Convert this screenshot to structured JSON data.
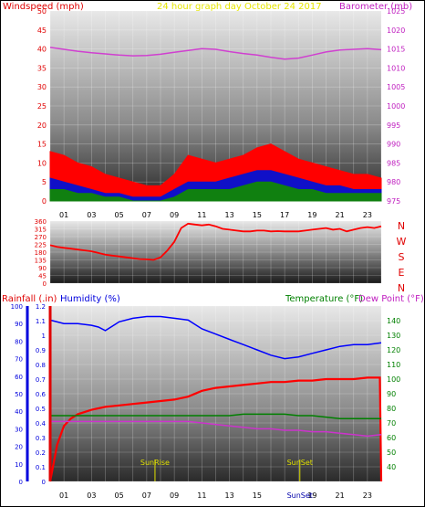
{
  "header": {
    "wind_title": "Windspeed (mph)",
    "center_title": "24 hour graph day   October 24 2017",
    "baro_title": "Barometer (mb)"
  },
  "colors": {
    "wind_title": "#e00000",
    "center_title": "#e6e600",
    "baro_title": "#c020c0",
    "wind_high": "#ff0000",
    "wind_mid": "#1010c8",
    "wind_low": "#108010",
    "barometer": "#d040d0",
    "direction": "#ff0000",
    "rain": "#ff0000",
    "humidity": "#0000ff",
    "temperature": "#008000",
    "dewpoint": "#cc33cc",
    "rain_axis": "#e00000",
    "hum_axis": "#0000dd",
    "temp_axis": "#008000",
    "sun": "#e0e000",
    "frame": "#000000"
  },
  "x_ticks": [
    "01",
    "03",
    "05",
    "07",
    "09",
    "11",
    "13",
    "15",
    "17",
    "19",
    "21",
    "23"
  ],
  "direction_letters": [
    "N",
    "W",
    "S",
    "E",
    "N"
  ],
  "panel3_titles": {
    "rain": "Rainfall (.in)",
    "humidity": "Humidity (%)",
    "temperature": "Temperature (°F)",
    "dewpoint": "Dew Point (°F)"
  },
  "sun_labels": {
    "rise": "SunRise",
    "set": "SunSet",
    "set_axis": "SunSet"
  },
  "chart_data": [
    {
      "type": "area",
      "title": "",
      "xlabel": "",
      "x_range": [
        0,
        24
      ],
      "ylabel_left": "Windspeed (mph)",
      "ylim": [
        0,
        50
      ],
      "yticks": [
        0,
        5,
        10,
        15,
        20,
        25,
        30,
        35,
        40,
        45,
        50
      ],
      "ylabel_right": "Barometer (mb)",
      "ylim_right": [
        975,
        1025
      ],
      "yticks_right": [
        975,
        980,
        985,
        990,
        995,
        1000,
        1005,
        1010,
        1015,
        1020,
        1025
      ],
      "grid": true,
      "series": [
        {
          "name": "Gust",
          "axis": "left",
          "x": [
            0,
            1,
            2,
            3,
            4,
            5,
            6,
            7,
            8,
            9,
            10,
            11,
            12,
            13,
            14,
            15,
            16,
            17,
            18,
            19,
            20,
            21,
            22,
            23,
            24
          ],
          "values": [
            13,
            12,
            10,
            9,
            7,
            6,
            5,
            4,
            4,
            7,
            12,
            11,
            10,
            11,
            12,
            14,
            15,
            13,
            11,
            10,
            9,
            8,
            7,
            7,
            6
          ]
        },
        {
          "name": "Average",
          "axis": "left",
          "x": [
            0,
            1,
            2,
            3,
            4,
            5,
            6,
            7,
            8,
            9,
            10,
            11,
            12,
            13,
            14,
            15,
            16,
            17,
            18,
            19,
            20,
            21,
            22,
            23,
            24
          ],
          "values": [
            6,
            5,
            4,
            3,
            2,
            2,
            1,
            1,
            1,
            3,
            5,
            5,
            5,
            6,
            7,
            8,
            8,
            7,
            6,
            5,
            4,
            4,
            3,
            3,
            3
          ]
        },
        {
          "name": "Low",
          "axis": "left",
          "x": [
            0,
            1,
            2,
            3,
            4,
            5,
            6,
            7,
            8,
            9,
            10,
            11,
            12,
            13,
            14,
            15,
            16,
            17,
            18,
            19,
            20,
            21,
            22,
            23,
            24
          ],
          "values": [
            3,
            3,
            2,
            2,
            1,
            1,
            0,
            0,
            0,
            1,
            3,
            3,
            3,
            3,
            4,
            5,
            5,
            4,
            3,
            3,
            2,
            2,
            2,
            2,
            2
          ]
        },
        {
          "name": "Barometer",
          "axis": "right",
          "x": [
            0,
            1,
            2,
            3,
            4,
            5,
            6,
            7,
            8,
            9,
            10,
            11,
            12,
            13,
            14,
            15,
            16,
            17,
            18,
            19,
            20,
            21,
            22,
            23,
            24
          ],
          "values": [
            1015.4,
            1014.9,
            1014.4,
            1014.0,
            1013.7,
            1013.4,
            1013.2,
            1013.3,
            1013.6,
            1014.1,
            1014.6,
            1015.1,
            1014.9,
            1014.3,
            1013.8,
            1013.4,
            1012.8,
            1012.3,
            1012.6,
            1013.4,
            1014.2,
            1014.7,
            1014.9,
            1015.1,
            1014.8
          ]
        }
      ]
    },
    {
      "type": "line",
      "title": "",
      "x_range": [
        0,
        24
      ],
      "ylabel_right": "N W S E N",
      "ylim": [
        0,
        360
      ],
      "yticks": [
        0,
        45,
        90,
        135,
        180,
        225,
        270,
        315,
        360
      ],
      "grid": true,
      "series": [
        {
          "name": "Wind direction",
          "x": [
            0,
            0.5,
            1,
            1.5,
            2,
            2.5,
            3,
            3.5,
            4,
            4.5,
            5,
            5.5,
            6,
            6.5,
            7,
            7.5,
            8,
            8.5,
            9,
            9.5,
            10,
            10.5,
            11,
            11.5,
            12,
            12.5,
            13,
            13.5,
            14,
            14.5,
            15,
            15.5,
            16,
            16.5,
            17,
            17.5,
            18,
            18.5,
            19,
            19.5,
            20,
            20.5,
            21,
            21.5,
            22,
            22.5,
            23,
            23.5,
            24
          ],
          "values": [
            220,
            210,
            205,
            200,
            195,
            190,
            185,
            175,
            165,
            160,
            155,
            150,
            145,
            140,
            138,
            135,
            150,
            190,
            240,
            320,
            345,
            340,
            335,
            340,
            330,
            315,
            310,
            305,
            300,
            300,
            305,
            305,
            300,
            302,
            300,
            300,
            300,
            305,
            310,
            315,
            320,
            310,
            315,
            300,
            310,
            320,
            325,
            320,
            330
          ]
        }
      ]
    },
    {
      "type": "line",
      "title": "",
      "x_range": [
        0,
        24
      ],
      "ylabel_left_outer": "Rainfall (.in)",
      "ylim_rain": [
        0,
        1.2
      ],
      "yticks_rain": [
        0,
        0.1,
        0.2,
        0.3,
        0.4,
        0.5,
        0.6,
        0.7,
        0.8,
        0.9,
        1,
        1.1,
        1.2
      ],
      "ylabel_left_inner": "Humidity (%)",
      "ylim_humidity": [
        0,
        100
      ],
      "yticks_humidity": [
        0,
        10,
        20,
        30,
        40,
        50,
        60,
        70,
        80,
        90,
        100
      ],
      "ylabel_right": "Temperature (°F)",
      "ylim_temp": [
        30,
        150
      ],
      "yticks_temp": [
        40,
        50,
        60,
        70,
        80,
        90,
        100,
        110,
        120,
        130,
        140
      ],
      "grid": true,
      "series": [
        {
          "name": "Humidity",
          "axis": "humidity",
          "x": [
            0,
            1,
            2,
            3,
            3.5,
            4,
            5,
            6,
            7,
            8,
            9,
            10,
            11,
            12,
            13,
            14,
            15,
            16,
            17,
            18,
            19,
            20,
            21,
            22,
            23,
            24
          ],
          "values": [
            92,
            90,
            90,
            89,
            88,
            86,
            91,
            93,
            94,
            94,
            93,
            92,
            87,
            84,
            81,
            78,
            75,
            72,
            70,
            71,
            73,
            75,
            77,
            78,
            78,
            79
          ]
        },
        {
          "name": "Rainfall",
          "axis": "rain",
          "x": [
            0,
            0.5,
            1,
            1.5,
            2,
            3,
            4,
            5,
            6,
            7,
            8,
            9,
            10,
            11,
            12,
            13,
            14,
            15,
            16,
            17,
            18,
            19,
            20,
            21,
            22,
            23,
            23.9,
            24
          ],
          "values": [
            0,
            0.25,
            0.38,
            0.43,
            0.46,
            0.49,
            0.51,
            0.52,
            0.53,
            0.54,
            0.55,
            0.56,
            0.58,
            0.62,
            0.64,
            0.65,
            0.66,
            0.67,
            0.68,
            0.68,
            0.69,
            0.69,
            0.7,
            0.7,
            0.7,
            0.71,
            0.71,
            0
          ]
        },
        {
          "name": "Temperature",
          "axis": "temp",
          "x": [
            0,
            1,
            2,
            3,
            4,
            5,
            6,
            7,
            8,
            9,
            10,
            11,
            12,
            13,
            14,
            15,
            16,
            17,
            18,
            19,
            20,
            21,
            22,
            23,
            24
          ],
          "values": [
            75,
            75,
            75,
            75,
            75,
            75,
            75,
            75,
            75,
            75,
            75,
            75,
            75,
            75,
            76,
            76,
            76,
            76,
            75,
            75,
            74,
            73,
            73,
            73,
            73
          ]
        },
        {
          "name": "Dew Point",
          "axis": "temp",
          "x": [
            0,
            1,
            2,
            3,
            4,
            5,
            6,
            7,
            8,
            9,
            10,
            11,
            12,
            13,
            14,
            15,
            16,
            17,
            18,
            19,
            20,
            21,
            22,
            23,
            24
          ],
          "values": [
            71,
            71,
            71,
            71,
            71,
            71,
            71,
            71,
            71,
            71,
            71,
            70,
            69,
            68,
            67,
            66,
            66,
            65,
            65,
            64,
            64,
            63,
            62,
            61,
            62
          ]
        }
      ],
      "annotations": [
        {
          "label": "SunRise",
          "x": 7.6
        },
        {
          "label": "SunSet",
          "x": 18.1
        }
      ]
    }
  ]
}
